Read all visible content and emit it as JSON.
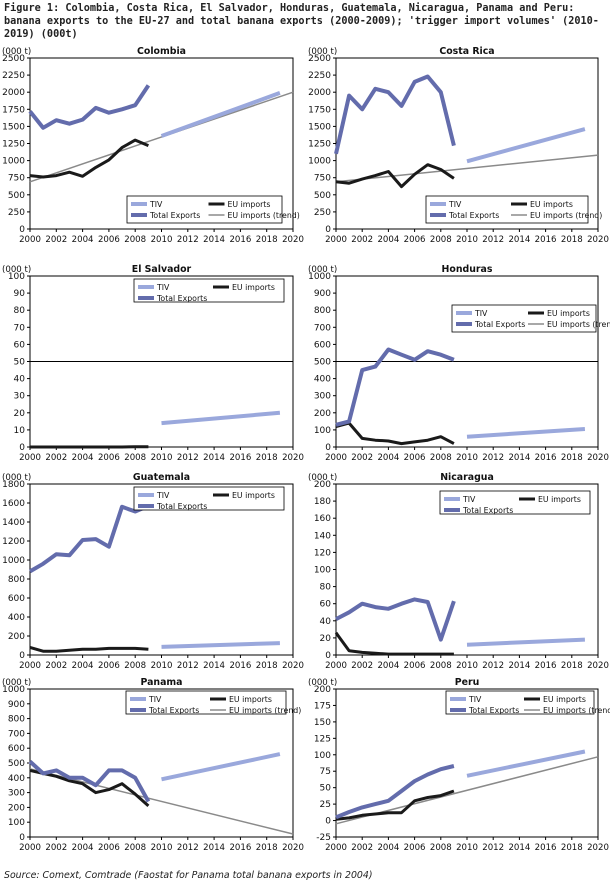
{
  "figure": {
    "title": "Figure 1: Colombia, Costa Rica, El Salvador, Honduras, Guatemala, Nicaragua, Panama and Peru: banana exports to the EU-27 and total banana exports (2000-2009); 'trigger import volumes' (2010-2019) (000t)",
    "source": "Source: Comext, Comtrade (Faostat for Panama total banana exports in 2004)"
  },
  "colors": {
    "tiv": "#9aa8dc",
    "total_exports": "#636cac",
    "eu_imports": "#1a1a1a",
    "trend": "#8a8a8a",
    "grid": "#000000"
  },
  "chart_data": [
    {
      "type": "line",
      "title": "Colombia",
      "unit_label": "(000 t)",
      "x_ticks": [
        2000,
        2002,
        2004,
        2006,
        2008,
        2010,
        2012,
        2014,
        2016,
        2018,
        2020
      ],
      "ylim": [
        0,
        2500
      ],
      "y_ticks": [
        0,
        250,
        500,
        750,
        1000,
        1250,
        1500,
        1750,
        2000,
        2250,
        2500
      ],
      "legend": [
        {
          "key": "tiv",
          "label": "TIV"
        },
        {
          "key": "eu",
          "label": "EU imports"
        },
        {
          "key": "total",
          "label": "Total Exports"
        },
        {
          "key": "trend",
          "label": "EU imports (trend)"
        }
      ],
      "series": [
        {
          "key": "total",
          "name": "Total Exports",
          "x": [
            2000,
            2001,
            2002,
            2003,
            2004,
            2005,
            2006,
            2007,
            2008,
            2009
          ],
          "values": [
            1720,
            1480,
            1590,
            1540,
            1600,
            1770,
            1700,
            1750,
            1810,
            2100
          ]
        },
        {
          "key": "eu",
          "name": "EU imports",
          "x": [
            2000,
            2001,
            2002,
            2003,
            2004,
            2005,
            2006,
            2007,
            2008,
            2009
          ],
          "values": [
            780,
            760,
            780,
            830,
            770,
            900,
            1010,
            1190,
            1300,
            1220
          ]
        },
        {
          "key": "tiv",
          "name": "TIV",
          "x": [
            2010,
            2019
          ],
          "values": [
            1360,
            1990
          ]
        },
        {
          "key": "trend",
          "name": "EU imports (trend)",
          "x": [
            2000,
            2020
          ],
          "values": [
            690,
            2000
          ]
        }
      ]
    },
    {
      "type": "line",
      "title": "Costa Rica",
      "unit_label": "(000 t)",
      "x_ticks": [
        2000,
        2002,
        2004,
        2006,
        2008,
        2010,
        2012,
        2014,
        2016,
        2018,
        2020
      ],
      "ylim": [
        0,
        2500
      ],
      "y_ticks": [
        0,
        250,
        500,
        750,
        1000,
        1250,
        1500,
        1750,
        2000,
        2250,
        2500
      ],
      "legend": [
        {
          "key": "tiv",
          "label": "TIV"
        },
        {
          "key": "eu",
          "label": "EU imports"
        },
        {
          "key": "total",
          "label": "Total Exports"
        },
        {
          "key": "trend",
          "label": "EU imports (trend)"
        }
      ],
      "series": [
        {
          "key": "total",
          "name": "Total Exports",
          "x": [
            2000,
            2001,
            2002,
            2003,
            2004,
            2005,
            2006,
            2007,
            2008,
            2009
          ],
          "values": [
            1100,
            1950,
            1750,
            2050,
            2000,
            1800,
            2150,
            2230,
            2000,
            1220
          ]
        },
        {
          "key": "eu",
          "name": "EU imports",
          "x": [
            2000,
            2001,
            2002,
            2003,
            2004,
            2005,
            2006,
            2007,
            2008,
            2009
          ],
          "values": [
            690,
            670,
            730,
            780,
            840,
            620,
            800,
            940,
            870,
            740
          ]
        },
        {
          "key": "tiv",
          "name": "TIV",
          "x": [
            2010,
            2019
          ],
          "values": [
            990,
            1460
          ]
        },
        {
          "key": "trend",
          "name": "EU imports (trend)",
          "x": [
            2000,
            2020
          ],
          "values": [
            690,
            1080
          ]
        }
      ]
    },
    {
      "type": "line",
      "title": "El Salvador",
      "unit_label": "(000 t)",
      "x_ticks": [
        2000,
        2002,
        2004,
        2006,
        2008,
        2010,
        2012,
        2014,
        2016,
        2018,
        2020
      ],
      "ylim": [
        0,
        100
      ],
      "y_ticks": [
        0,
        10,
        20,
        30,
        40,
        50,
        60,
        70,
        80,
        90,
        100
      ],
      "reference_line": 50,
      "legend": [
        {
          "key": "tiv",
          "label": "TIV"
        },
        {
          "key": "eu",
          "label": "EU imports"
        },
        {
          "key": "total",
          "label": "Total Exports"
        }
      ],
      "series": [
        {
          "key": "eu",
          "name": "EU imports",
          "x": [
            2000,
            2001,
            2002,
            2003,
            2004,
            2005,
            2006,
            2007,
            2008,
            2009
          ],
          "values": [
            0,
            0,
            0,
            0,
            0,
            0,
            0,
            0,
            0.2,
            0.2
          ]
        },
        {
          "key": "tiv",
          "name": "TIV",
          "x": [
            2010,
            2019
          ],
          "values": [
            14,
            20
          ]
        }
      ]
    },
    {
      "type": "line",
      "title": "Honduras",
      "unit_label": "(000 t)",
      "x_ticks": [
        2000,
        2002,
        2004,
        2006,
        2008,
        2010,
        2012,
        2014,
        2016,
        2018,
        2020
      ],
      "ylim": [
        0,
        1000
      ],
      "y_ticks": [
        0,
        100,
        200,
        300,
        400,
        500,
        600,
        700,
        800,
        900,
        1000
      ],
      "reference_line": 500,
      "legend": [
        {
          "key": "tiv",
          "label": "TIV"
        },
        {
          "key": "eu",
          "label": "EU imports"
        },
        {
          "key": "total",
          "label": "Total Exports"
        },
        {
          "key": "trend",
          "label": "EU imports (trend)"
        }
      ],
      "series": [
        {
          "key": "total",
          "name": "Total Exports",
          "x": [
            2000,
            2001,
            2002,
            2003,
            2004,
            2005,
            2006,
            2007,
            2008,
            2009
          ],
          "values": [
            130,
            150,
            450,
            470,
            570,
            540,
            510,
            560,
            540,
            510
          ]
        },
        {
          "key": "eu",
          "name": "EU imports",
          "x": [
            2000,
            2001,
            2002,
            2003,
            2004,
            2005,
            2006,
            2007,
            2008,
            2009
          ],
          "values": [
            120,
            140,
            50,
            40,
            35,
            20,
            30,
            40,
            60,
            20
          ]
        },
        {
          "key": "tiv",
          "name": "TIV",
          "x": [
            2010,
            2019
          ],
          "values": [
            60,
            105
          ]
        }
      ]
    },
    {
      "type": "line",
      "title": "Guatemala",
      "unit_label": "(000 t)",
      "x_ticks": [
        2000,
        2002,
        2004,
        2006,
        2008,
        2010,
        2012,
        2014,
        2016,
        2018,
        2020
      ],
      "ylim": [
        0,
        1800
      ],
      "y_ticks": [
        0,
        200,
        400,
        600,
        800,
        1000,
        1200,
        1400,
        1600,
        1800
      ],
      "legend": [
        {
          "key": "tiv",
          "label": "TIV"
        },
        {
          "key": "eu",
          "label": "EU imports"
        },
        {
          "key": "total",
          "label": "Total Exports"
        }
      ],
      "series": [
        {
          "key": "total",
          "name": "Total Exports",
          "x": [
            2000,
            2001,
            2002,
            2003,
            2004,
            2005,
            2006,
            2007,
            2008,
            2009
          ],
          "values": [
            880,
            960,
            1060,
            1050,
            1210,
            1220,
            1140,
            1560,
            1510,
            1570
          ]
        },
        {
          "key": "eu",
          "name": "EU imports",
          "x": [
            2000,
            2001,
            2002,
            2003,
            2004,
            2005,
            2006,
            2007,
            2008,
            2009
          ],
          "values": [
            80,
            40,
            40,
            50,
            60,
            60,
            70,
            70,
            70,
            60
          ]
        },
        {
          "key": "tiv",
          "name": "TIV",
          "x": [
            2010,
            2019
          ],
          "values": [
            85,
            125
          ]
        }
      ]
    },
    {
      "type": "line",
      "title": "Nicaragua",
      "unit_label": "(000 t)",
      "x_ticks": [
        2000,
        2002,
        2004,
        2006,
        2008,
        2010,
        2012,
        2014,
        2016,
        2018,
        2020
      ],
      "ylim": [
        0,
        200
      ],
      "y_ticks": [
        0,
        20,
        40,
        60,
        80,
        100,
        120,
        140,
        160,
        180,
        200
      ],
      "legend": [
        {
          "key": "tiv",
          "label": "TIV"
        },
        {
          "key": "eu",
          "label": "EU imports"
        },
        {
          "key": "total",
          "label": "Total Exports"
        }
      ],
      "series": [
        {
          "key": "total",
          "name": "Total Exports",
          "x": [
            2000,
            2001,
            2002,
            2003,
            2004,
            2005,
            2006,
            2007,
            2008,
            2009
          ],
          "values": [
            42,
            50,
            60,
            56,
            54,
            60,
            65,
            62,
            18,
            63
          ]
        },
        {
          "key": "eu",
          "name": "EU imports",
          "x": [
            2000,
            2001,
            2002,
            2003,
            2004,
            2005,
            2006,
            2007,
            2008,
            2009
          ],
          "values": [
            26,
            5,
            3,
            2,
            1,
            1,
            1,
            1,
            1,
            1
          ]
        },
        {
          "key": "tiv",
          "name": "TIV",
          "x": [
            2010,
            2019
          ],
          "values": [
            12,
            18
          ]
        }
      ]
    },
    {
      "type": "line",
      "title": "Panama",
      "unit_label": "(000 t)",
      "x_ticks": [
        2000,
        2002,
        2004,
        2006,
        2008,
        2010,
        2012,
        2014,
        2016,
        2018,
        2020
      ],
      "ylim": [
        0,
        1000
      ],
      "y_ticks": [
        0,
        100,
        200,
        300,
        400,
        500,
        600,
        700,
        800,
        900,
        1000
      ],
      "legend": [
        {
          "key": "tiv",
          "label": "TIV"
        },
        {
          "key": "eu",
          "label": "EU imports"
        },
        {
          "key": "total",
          "label": "Total Exports"
        },
        {
          "key": "trend",
          "label": "EU imports (trend)"
        }
      ],
      "series": [
        {
          "key": "total",
          "name": "Total Exports",
          "x": [
            2000,
            2001,
            2002,
            2003,
            2004,
            2005,
            2006,
            2007,
            2008,
            2009
          ],
          "values": [
            510,
            430,
            450,
            400,
            400,
            350,
            450,
            450,
            400,
            240
          ]
        },
        {
          "key": "eu",
          "name": "EU imports",
          "x": [
            2000,
            2001,
            2002,
            2003,
            2004,
            2005,
            2006,
            2007,
            2008,
            2009
          ],
          "values": [
            450,
            430,
            410,
            380,
            360,
            300,
            320,
            360,
            290,
            210
          ]
        },
        {
          "key": "tiv",
          "name": "TIV",
          "x": [
            2010,
            2019
          ],
          "values": [
            390,
            560
          ]
        },
        {
          "key": "trend",
          "name": "EU imports (trend)",
          "x": [
            2000,
            2020
          ],
          "values": [
            460,
            20
          ]
        }
      ]
    },
    {
      "type": "line",
      "title": "Peru",
      "unit_label": "(000 t)",
      "x_ticks": [
        2000,
        2002,
        2004,
        2006,
        2008,
        2010,
        2012,
        2014,
        2016,
        2018,
        2020
      ],
      "ylim": [
        -25,
        200
      ],
      "y_ticks": [
        -25,
        0,
        25,
        50,
        75,
        100,
        125,
        150,
        175,
        200
      ],
      "legend": [
        {
          "key": "tiv",
          "label": "TIV"
        },
        {
          "key": "eu",
          "label": "EU imports"
        },
        {
          "key": "total",
          "label": "Total Exports"
        },
        {
          "key": "trend",
          "label": "EU imports (trend)"
        }
      ],
      "series": [
        {
          "key": "total",
          "name": "Total Exports",
          "x": [
            2000,
            2001,
            2002,
            2003,
            2004,
            2005,
            2006,
            2007,
            2008,
            2009
          ],
          "values": [
            5,
            13,
            20,
            25,
            30,
            45,
            60,
            70,
            78,
            83
          ]
        },
        {
          "key": "eu",
          "name": "EU imports",
          "x": [
            2000,
            2001,
            2002,
            2003,
            2004,
            2005,
            2006,
            2007,
            2008,
            2009
          ],
          "values": [
            2,
            4,
            8,
            10,
            12,
            12,
            30,
            35,
            38,
            45
          ]
        },
        {
          "key": "tiv",
          "name": "TIV",
          "x": [
            2010,
            2019
          ],
          "values": [
            68,
            105
          ]
        },
        {
          "key": "trend",
          "name": "EU imports (trend)",
          "x": [
            2000,
            2020
          ],
          "values": [
            -5,
            97
          ]
        }
      ]
    }
  ]
}
